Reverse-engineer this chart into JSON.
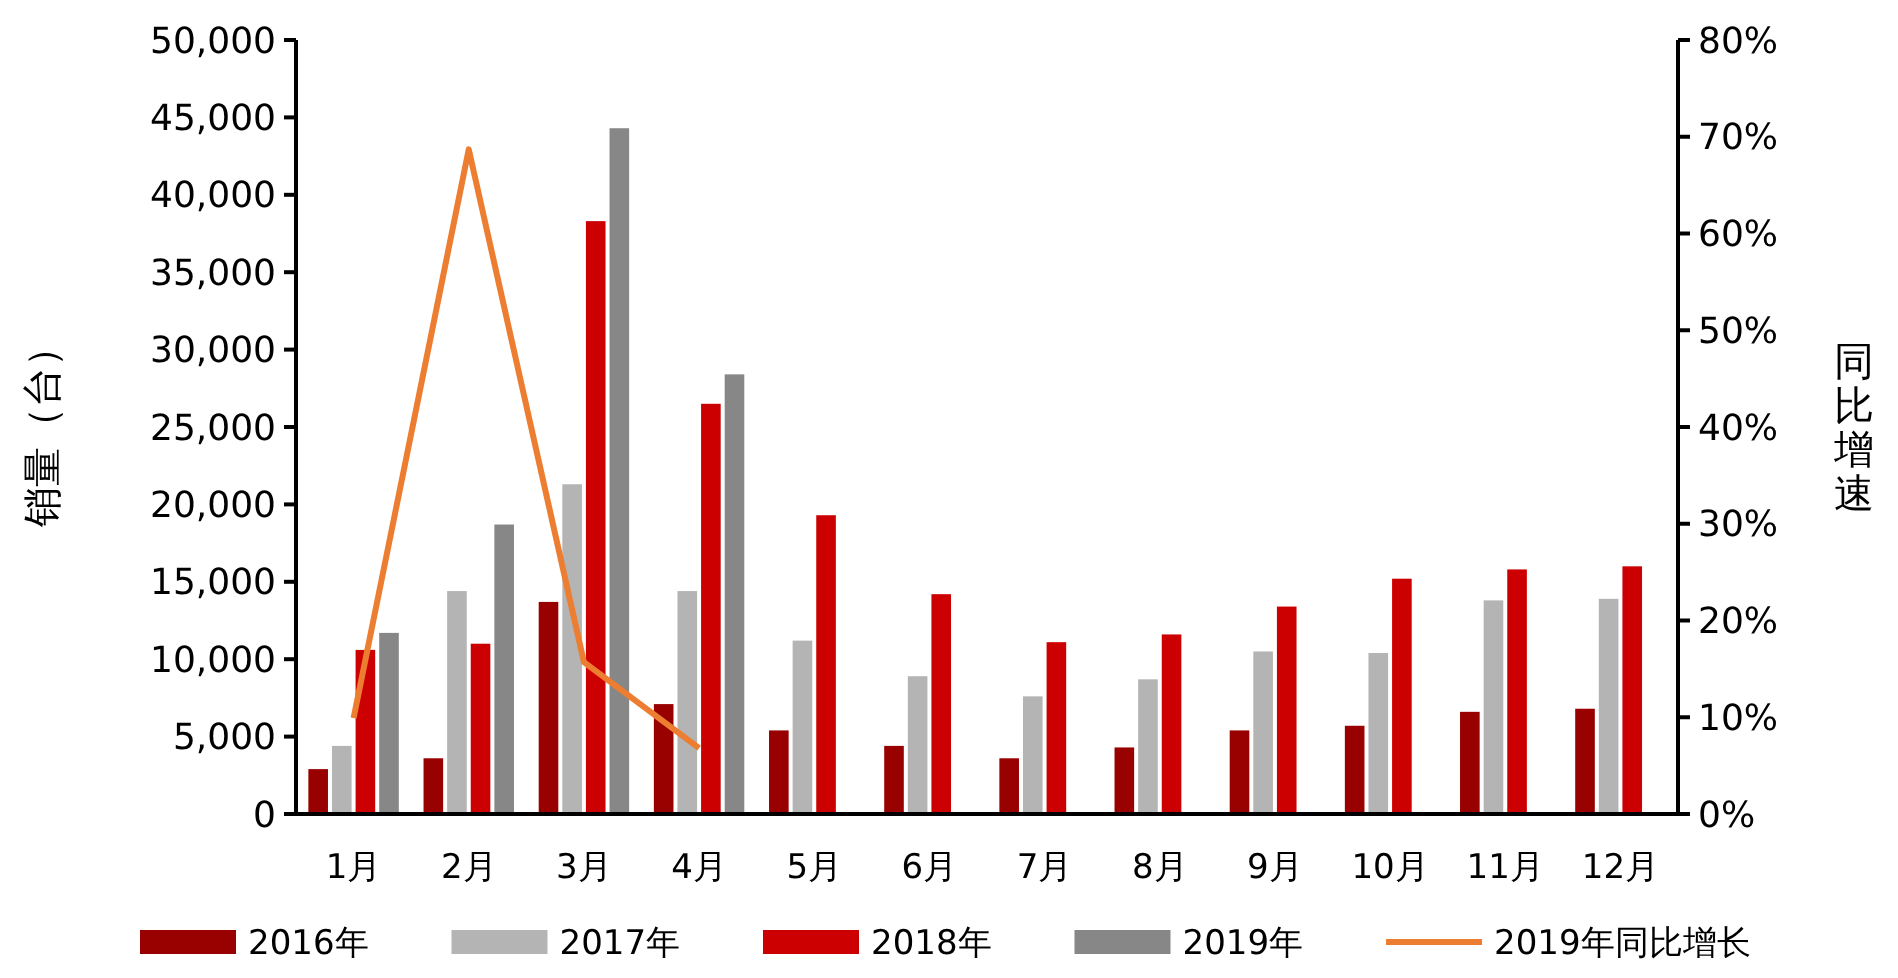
{
  "chart_data": {
    "type": "bar",
    "ylabel": "销量（台）",
    "y2label": "同比增速",
    "categories": [
      "1月",
      "2月",
      "3月",
      "4月",
      "5月",
      "6月",
      "7月",
      "8月",
      "9月",
      "10月",
      "11月",
      "12月"
    ],
    "series": [
      {
        "name": "2016年",
        "color": "#990000",
        "values": [
          2900,
          3600,
          13700,
          7100,
          5400,
          4400,
          3600,
          4300,
          5400,
          5700,
          6600,
          6800
        ]
      },
      {
        "name": "2017年",
        "color": "#b4b4b4",
        "values": [
          4400,
          14400,
          21300,
          14400,
          11200,
          8900,
          7600,
          8700,
          10500,
          10400,
          13800,
          13900
        ]
      },
      {
        "name": "2018年",
        "color": "#cc0000",
        "values": [
          10600,
          11000,
          38300,
          26500,
          19300,
          14200,
          11100,
          11600,
          13400,
          15200,
          15800,
          16000
        ]
      },
      {
        "name": "2019年",
        "color": "#878787",
        "values": [
          11700,
          18700,
          44300,
          28400,
          null,
          null,
          null,
          null,
          null,
          null,
          null,
          null
        ]
      },
      {
        "name": "2019年同比增长",
        "type": "line",
        "axis": "y2",
        "color": "#ed7d31",
        "values": [
          9.9,
          68.7,
          15.7,
          6.8,
          null,
          null,
          null,
          null,
          null,
          null,
          null,
          null
        ]
      }
    ],
    "ylim": [
      0,
      50000
    ],
    "yticks": [
      0,
      {
        "value": 5000,
        "label": "5,000"
      },
      {
        "value": 10000,
        "label": "10,000"
      },
      {
        "value": 15000,
        "label": "15,000"
      },
      {
        "value": 20000,
        "label": "20,000"
      },
      {
        "value": 25000,
        "label": "25,000"
      },
      {
        "value": 30000,
        "label": "30,000"
      },
      {
        "value": 35000,
        "label": "35,000"
      },
      {
        "value": 40000,
        "label": "40,000"
      },
      {
        "value": 45000,
        "label": "45,000"
      },
      {
        "value": 50000,
        "label": "50,000"
      }
    ],
    "y2lim": [
      0,
      80
    ],
    "y2ticks": [
      {
        "value": 0,
        "label": "0%"
      },
      {
        "value": 10,
        "label": "10%"
      },
      {
        "value": 20,
        "label": "20%"
      },
      {
        "value": 30,
        "label": "30%"
      },
      {
        "value": 40,
        "label": "40%"
      },
      {
        "value": 50,
        "label": "50%"
      },
      {
        "value": 60,
        "label": "60%"
      },
      {
        "value": 70,
        "label": "70%"
      },
      {
        "value": 80,
        "label": "80%"
      }
    ],
    "grid": false,
    "legend": "bottom"
  }
}
